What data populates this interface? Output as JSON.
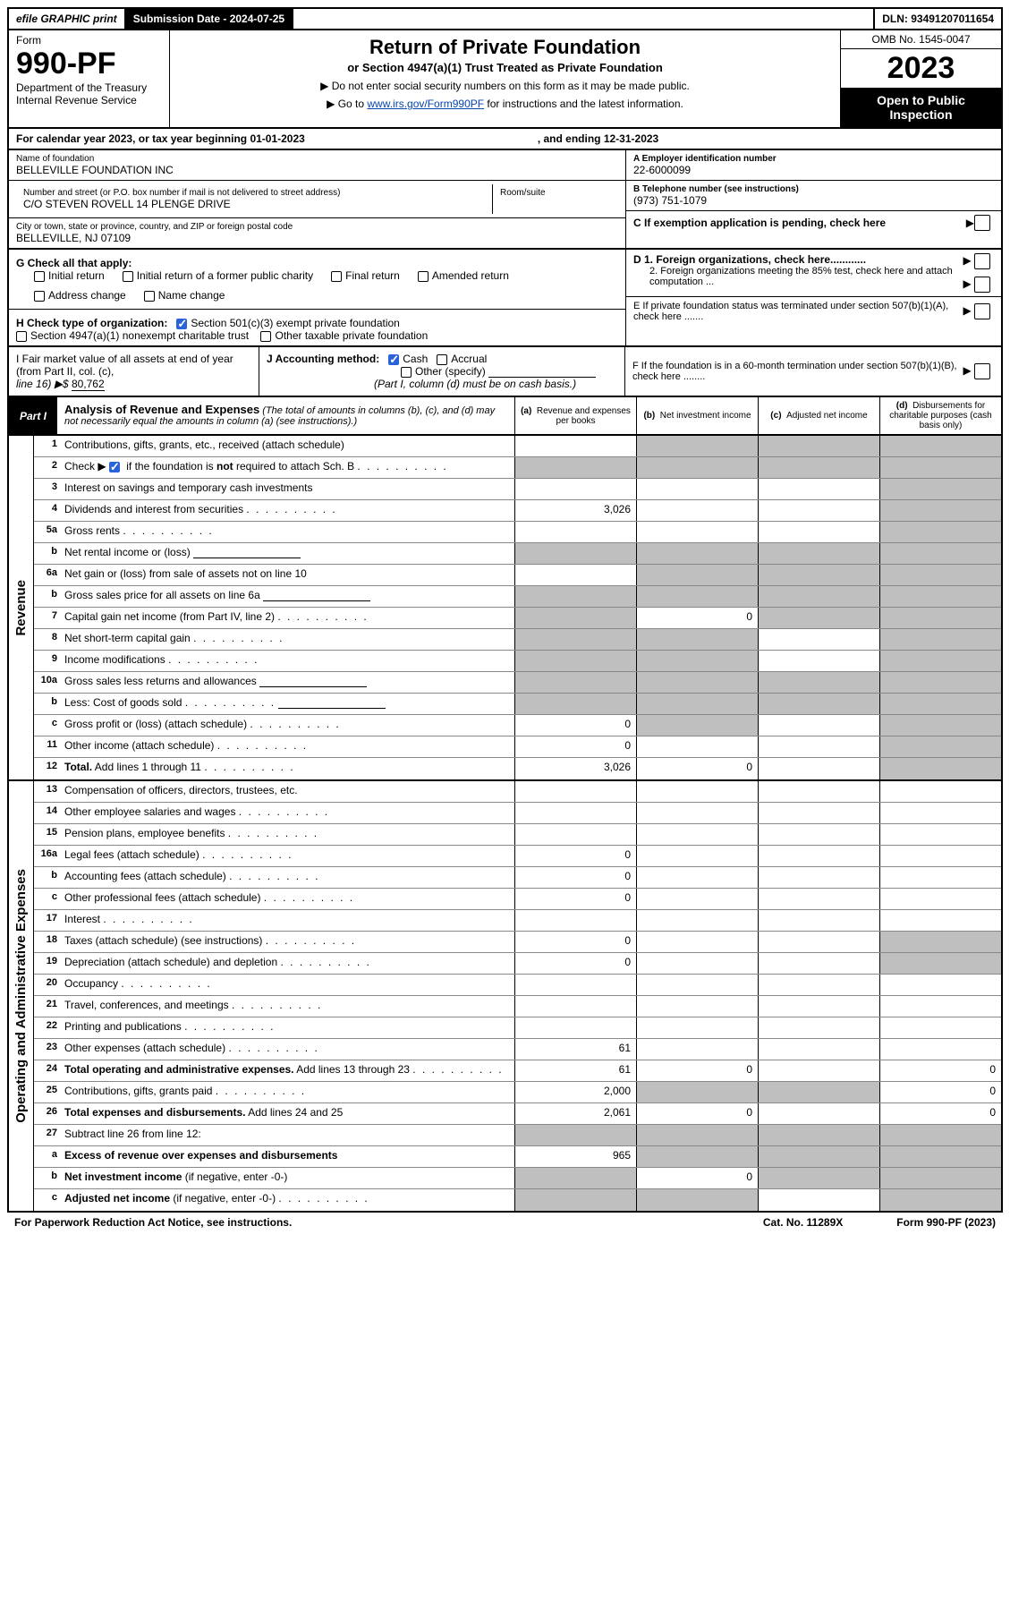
{
  "topbar": {
    "efile": "efile GRAPHIC print",
    "submission_label": "Submission Date - 2024-07-25",
    "dln": "DLN: 93491207011654"
  },
  "header": {
    "form_word": "Form",
    "form_number": "990-PF",
    "dept": "Department of the Treasury",
    "irs": "Internal Revenue Service",
    "title": "Return of Private Foundation",
    "subtitle": "or Section 4947(a)(1) Trust Treated as Private Foundation",
    "note1": "▶ Do not enter social security numbers on this form as it may be made public.",
    "note2_pre": "▶ Go to ",
    "note2_link": "www.irs.gov/Form990PF",
    "note2_post": " for instructions and the latest information.",
    "omb": "OMB No. 1545-0047",
    "year": "2023",
    "inspect": "Open to Public Inspection"
  },
  "calyear": {
    "pre": "For calendar year 2023, or tax year beginning 01-01-2023",
    "post": ", and ending 12-31-2023"
  },
  "info_left": {
    "name_label": "Name of foundation",
    "name_val": "BELLEVILLE FOUNDATION INC",
    "addr_label": "Number and street (or P.O. box number if mail is not delivered to street address)",
    "addr_val": "C/O STEVEN ROVELL 14 PLENGE DRIVE",
    "room_label": "Room/suite",
    "city_label": "City or town, state or province, country, and ZIP or foreign postal code",
    "city_val": "BELLEVILLE, NJ  07109"
  },
  "info_right": {
    "a_label": "A Employer identification number",
    "a_val": "22-6000099",
    "b_label": "B Telephone number (see instructions)",
    "b_val": "(973) 751-1079",
    "c_label": "C If exemption application is pending, check here",
    "d1": "D 1. Foreign organizations, check here............",
    "d2": "2. Foreign organizations meeting the 85% test, check here and attach computation ...",
    "e": "E  If private foundation status was terminated under section 507(b)(1)(A), check here .......",
    "f": "F  If the foundation is in a 60-month termination under section 507(b)(1)(B), check here ........"
  },
  "g": {
    "label": "G Check all that apply:",
    "opt1": "Initial return",
    "opt2": "Initial return of a former public charity",
    "opt3": "Final return",
    "opt4": "Amended return",
    "opt5": "Address change",
    "opt6": "Name change"
  },
  "h": {
    "label": "H Check type of organization:",
    "opt1": "Section 501(c)(3) exempt private foundation",
    "opt2": "Section 4947(a)(1) nonexempt charitable trust",
    "opt3": "Other taxable private foundation"
  },
  "i": {
    "label": "I Fair market value of all assets at end of year (from Part II, col. (c),",
    "line16": "line 16) ▶$ ",
    "val": "80,762"
  },
  "j": {
    "label": "J Accounting method:",
    "opt1": "Cash",
    "opt2": "Accrual",
    "opt3": "Other (specify)",
    "note": "(Part I, column (d) must be on cash basis.)"
  },
  "part1": {
    "tag": "Part I",
    "title": "Analysis of Revenue and Expenses",
    "sub": " (The total of amounts in columns (b), (c), and (d) may not necessarily equal the amounts in column (a) (see instructions).)",
    "col_a": "(a)     Revenue and expenses per books",
    "col_b": "(b)     Net investment income",
    "col_c": "(c)    Adjusted net income",
    "col_d": "(d)    Disbursements for charitable purposes (cash basis only)"
  },
  "side_labels": {
    "rev": "Revenue",
    "exp": "Operating and Administrative Expenses"
  },
  "rows_rev": [
    {
      "n": "1",
      "l": "Contributions, gifts, grants, etc., received (attach schedule)",
      "a": "",
      "b": "g",
      "c": "g",
      "d": "g"
    },
    {
      "n": "2",
      "l": "Check ▶ ✓ if the foundation is <b>not</b> required to attach Sch. B",
      "dots": true,
      "a": "g",
      "b": "g",
      "c": "g",
      "d": "g",
      "checked": true
    },
    {
      "n": "3",
      "l": "Interest on savings and temporary cash investments",
      "a": "",
      "b": "",
      "c": "",
      "d": "g"
    },
    {
      "n": "4",
      "l": "Dividends and interest from securities",
      "dots": true,
      "a": "3,026",
      "b": "",
      "c": "",
      "d": "g"
    },
    {
      "n": "5a",
      "l": "Gross rents",
      "dots": true,
      "a": "",
      "b": "",
      "c": "",
      "d": "g"
    },
    {
      "n": "b",
      "l": "Net rental income or (loss)",
      "blank": true,
      "a": "g",
      "b": "g",
      "c": "g",
      "d": "g"
    },
    {
      "n": "6a",
      "l": "Net gain or (loss) from sale of assets not on line 10",
      "a": "",
      "b": "g",
      "c": "g",
      "d": "g"
    },
    {
      "n": "b",
      "l": "Gross sales price for all assets on line 6a",
      "blank": true,
      "a": "g",
      "b": "g",
      "c": "g",
      "d": "g"
    },
    {
      "n": "7",
      "l": "Capital gain net income (from Part IV, line 2)",
      "dots": true,
      "a": "g",
      "b": "0",
      "c": "g",
      "d": "g"
    },
    {
      "n": "8",
      "l": "Net short-term capital gain",
      "dots": true,
      "a": "g",
      "b": "g",
      "c": "",
      "d": "g"
    },
    {
      "n": "9",
      "l": "Income modifications",
      "dots": true,
      "a": "g",
      "b": "g",
      "c": "",
      "d": "g"
    },
    {
      "n": "10a",
      "l": "Gross sales less returns and allowances",
      "blank": true,
      "a": "g",
      "b": "g",
      "c": "g",
      "d": "g"
    },
    {
      "n": "b",
      "l": "Less: Cost of goods sold",
      "dots": true,
      "blank": true,
      "a": "g",
      "b": "g",
      "c": "g",
      "d": "g"
    },
    {
      "n": "c",
      "l": "Gross profit or (loss) (attach schedule)",
      "dots": true,
      "a": "0",
      "b": "g",
      "c": "",
      "d": "g"
    },
    {
      "n": "11",
      "l": "Other income (attach schedule)",
      "dots": true,
      "a": "0",
      "b": "",
      "c": "",
      "d": "g"
    },
    {
      "n": "12",
      "l": "<b>Total.</b> Add lines 1 through 11",
      "dots": true,
      "a": "3,026",
      "b": "0",
      "c": "",
      "d": "g"
    }
  ],
  "rows_exp": [
    {
      "n": "13",
      "l": "Compensation of officers, directors, trustees, etc.",
      "a": "",
      "b": "",
      "c": "",
      "d": ""
    },
    {
      "n": "14",
      "l": "Other employee salaries and wages",
      "dots": true,
      "a": "",
      "b": "",
      "c": "",
      "d": ""
    },
    {
      "n": "15",
      "l": "Pension plans, employee benefits",
      "dots": true,
      "a": "",
      "b": "",
      "c": "",
      "d": ""
    },
    {
      "n": "16a",
      "l": "Legal fees (attach schedule)",
      "dots": true,
      "a": "0",
      "b": "",
      "c": "",
      "d": ""
    },
    {
      "n": "b",
      "l": "Accounting fees (attach schedule)",
      "dots": true,
      "a": "0",
      "b": "",
      "c": "",
      "d": ""
    },
    {
      "n": "c",
      "l": "Other professional fees (attach schedule)",
      "dots": true,
      "a": "0",
      "b": "",
      "c": "",
      "d": ""
    },
    {
      "n": "17",
      "l": "Interest",
      "dots": true,
      "a": "",
      "b": "",
      "c": "",
      "d": ""
    },
    {
      "n": "18",
      "l": "Taxes (attach schedule) (see instructions)",
      "dots": true,
      "a": "0",
      "b": "",
      "c": "",
      "d": "g"
    },
    {
      "n": "19",
      "l": "Depreciation (attach schedule) and depletion",
      "dots": true,
      "a": "0",
      "b": "",
      "c": "",
      "d": "g"
    },
    {
      "n": "20",
      "l": "Occupancy",
      "dots": true,
      "a": "",
      "b": "",
      "c": "",
      "d": ""
    },
    {
      "n": "21",
      "l": "Travel, conferences, and meetings",
      "dots": true,
      "a": "",
      "b": "",
      "c": "",
      "d": ""
    },
    {
      "n": "22",
      "l": "Printing and publications",
      "dots": true,
      "a": "",
      "b": "",
      "c": "",
      "d": ""
    },
    {
      "n": "23",
      "l": "Other expenses (attach schedule)",
      "dots": true,
      "a": "61",
      "b": "",
      "c": "",
      "d": ""
    },
    {
      "n": "24",
      "l": "<b>Total operating and administrative expenses.</b> Add lines 13 through 23",
      "dots": true,
      "a": "61",
      "b": "0",
      "c": "",
      "d": "0"
    },
    {
      "n": "25",
      "l": "Contributions, gifts, grants paid",
      "dots": true,
      "a": "2,000",
      "b": "g",
      "c": "g",
      "d": "0"
    },
    {
      "n": "26",
      "l": "<b>Total expenses and disbursements.</b> Add lines 24 and 25",
      "a": "2,061",
      "b": "0",
      "c": "",
      "d": "0"
    },
    {
      "n": "27",
      "l": "Subtract line 26 from line 12:",
      "a": "g",
      "b": "g",
      "c": "g",
      "d": "g"
    },
    {
      "n": "a",
      "l": "<b>Excess of revenue over expenses and disbursements</b>",
      "a": "965",
      "b": "g",
      "c": "g",
      "d": "g"
    },
    {
      "n": "b",
      "l": "<b>Net investment income</b> (if negative, enter -0-)",
      "a": "g",
      "b": "0",
      "c": "g",
      "d": "g"
    },
    {
      "n": "c",
      "l": "<b>Adjusted net income</b> (if negative, enter -0-)",
      "dots": true,
      "a": "g",
      "b": "g",
      "c": "",
      "d": "g"
    }
  ],
  "footer": {
    "left": "For Paperwork Reduction Act Notice, see instructions.",
    "mid": "Cat. No. 11289X",
    "right": "Form 990-PF (2023)"
  }
}
